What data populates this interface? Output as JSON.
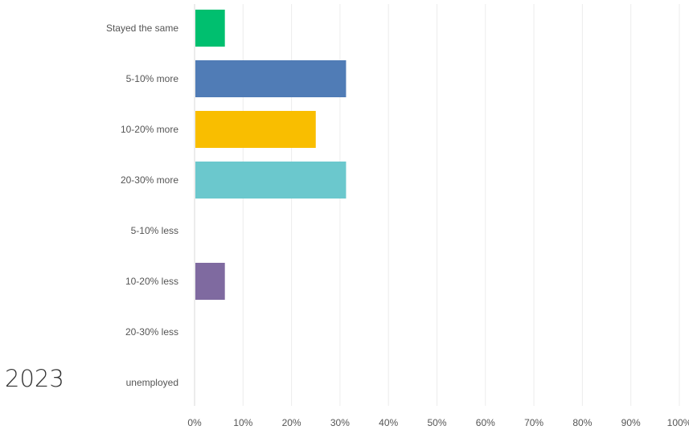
{
  "year_label": "2023",
  "chart_data": {
    "type": "bar",
    "orientation": "horizontal",
    "categories": [
      "Stayed the same",
      "5-10% more",
      "10-20% more",
      "20-30% more",
      "5-10% less",
      "10-20% less",
      "20-30% less",
      "unemployed"
    ],
    "values": [
      6.25,
      31.25,
      25.0,
      31.25,
      0,
      6.25,
      0,
      0
    ],
    "colors": [
      "#00bf6f",
      "#507cb6",
      "#f9be00",
      "#6bc8cd",
      "#ff8b4f",
      "#7f6aa0",
      "#d25f90",
      "#a9a9a9"
    ],
    "xlim": [
      0,
      100
    ],
    "xticks": [
      "0%",
      "10%",
      "20%",
      "30%",
      "40%",
      "50%",
      "60%",
      "70%",
      "80%",
      "90%",
      "100%"
    ],
    "grid": true,
    "title": "",
    "xlabel": "",
    "ylabel": ""
  }
}
